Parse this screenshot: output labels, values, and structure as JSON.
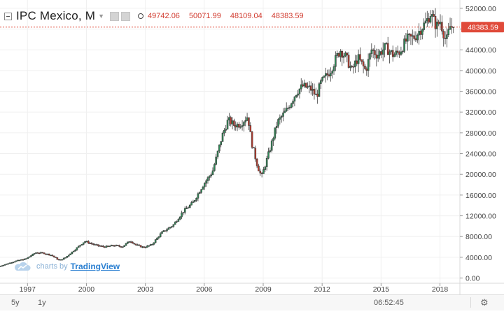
{
  "header": {
    "symbol_title": "IPC Mexico, M",
    "ohlc": {
      "open": "49742.06",
      "high": "50071.99",
      "low": "48109.04",
      "close": "48383.59"
    }
  },
  "watermark": {
    "prefix": "charts by",
    "brand": "TradingView"
  },
  "bottom_bar": {
    "range_5y": "5y",
    "range_1y": "1y",
    "clock": "06:52:45",
    "settings_icon": "gear-icon"
  },
  "colors": {
    "up": "#2e8b57",
    "down": "#c0392b",
    "outline": "#3b3b3b",
    "price_line": "#e04a3a",
    "price_tag": "#e04a3a"
  },
  "chart_data": {
    "type": "candlestick",
    "title": "IPC Mexico, M",
    "interval": "monthly",
    "y_ticks": [
      0,
      4000,
      8000,
      12000,
      16000,
      20000,
      24000,
      28000,
      32000,
      36000,
      40000,
      44000,
      48000,
      52000
    ],
    "y_tick_labels": [
      "0.00",
      "4000.00",
      "8000.00",
      "12000.00",
      "16000.00",
      "20000.00",
      "24000.00",
      "28000.00",
      "32000.00",
      "36000.00",
      "40000.00",
      "44000.00",
      "48000.00",
      "52000.00"
    ],
    "x_tick_labels": [
      "1997",
      "2000",
      "2003",
      "2006",
      "2009",
      "2012",
      "2015",
      "2018"
    ],
    "x_range": [
      1995.6,
      2018.8
    ],
    "ylim": [
      -1000,
      53600
    ],
    "last_price_label": "48383.59",
    "last_price": 48383.59,
    "anchors": [
      [
        1995.6,
        2200
      ],
      [
        1996.0,
        2700
      ],
      [
        1996.5,
        3300
      ],
      [
        1997.0,
        3700
      ],
      [
        1997.5,
        4900
      ],
      [
        1997.9,
        4800
      ],
      [
        1998.3,
        4400
      ],
      [
        1998.7,
        3400
      ],
      [
        1999.0,
        3900
      ],
      [
        1999.5,
        5500
      ],
      [
        2000.0,
        7100
      ],
      [
        2000.5,
        6400
      ],
      [
        2001.0,
        6000
      ],
      [
        2001.5,
        6300
      ],
      [
        2001.9,
        6000
      ],
      [
        2002.3,
        7200
      ],
      [
        2002.6,
        6400
      ],
      [
        2003.0,
        5900
      ],
      [
        2003.4,
        6400
      ],
      [
        2003.9,
        8700
      ],
      [
        2004.5,
        10200
      ],
      [
        2005.0,
        12800
      ],
      [
        2005.5,
        14500
      ],
      [
        2006.0,
        17800
      ],
      [
        2006.5,
        20500
      ],
      [
        2007.0,
        27500
      ],
      [
        2007.3,
        30500
      ],
      [
        2007.6,
        29500
      ],
      [
        2007.9,
        29600
      ],
      [
        2008.3,
        31200
      ],
      [
        2008.5,
        26000
      ],
      [
        2008.8,
        21500
      ],
      [
        2009.0,
        19500
      ],
      [
        2009.4,
        24500
      ],
      [
        2009.8,
        30000
      ],
      [
        2010.3,
        32500
      ],
      [
        2010.8,
        36000
      ],
      [
        2011.1,
        37000
      ],
      [
        2011.5,
        36500
      ],
      [
        2011.8,
        35000
      ],
      [
        2012.0,
        37500
      ],
      [
        2012.5,
        40000
      ],
      [
        2013.0,
        44000
      ],
      [
        2013.3,
        42500
      ],
      [
        2013.6,
        40000
      ],
      [
        2013.9,
        42500
      ],
      [
        2014.3,
        40000
      ],
      [
        2014.6,
        44000
      ],
      [
        2014.9,
        43000
      ],
      [
        2015.3,
        44500
      ],
      [
        2015.7,
        43000
      ],
      [
        2016.0,
        43500
      ],
      [
        2016.4,
        46000
      ],
      [
        2016.8,
        46500
      ],
      [
        2017.0,
        47500
      ],
      [
        2017.4,
        49500
      ],
      [
        2017.6,
        51000
      ],
      [
        2017.9,
        48500
      ],
      [
        2018.1,
        49500
      ],
      [
        2018.4,
        45500
      ],
      [
        2018.6,
        48500
      ],
      [
        2018.75,
        48383.59
      ]
    ]
  }
}
